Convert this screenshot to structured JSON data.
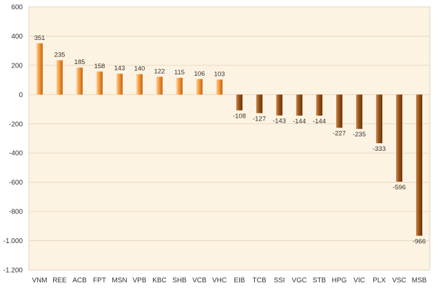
{
  "chart_data": {
    "type": "bar",
    "title": "",
    "xlabel": "",
    "ylabel": "",
    "categories": [
      "VNM",
      "REE",
      "ACB",
      "FPT",
      "MSN",
      "VPB",
      "KBC",
      "SHB",
      "VCB",
      "VHC",
      "EIB",
      "TCB",
      "SSI",
      "VGC",
      "STB",
      "HPG",
      "VIC",
      "PLX",
      "VSC",
      "MSB"
    ],
    "values": [
      351,
      235,
      185,
      158,
      143,
      140,
      122,
      115,
      106,
      103,
      -108,
      -127,
      -143,
      -144,
      -144,
      -227,
      -235,
      -333,
      -596,
      -966
    ],
    "data_labels": [
      "351",
      "235",
      "185",
      "158",
      "143",
      "140",
      "122",
      "115",
      "106",
      "103",
      "-108",
      "-127",
      "-143",
      "-144",
      "-144",
      "-227",
      "-235",
      "-333",
      "-596",
      "-966"
    ],
    "ylim": [
      -1200,
      600
    ],
    "yticks": [
      600,
      400,
      200,
      0,
      -200,
      -400,
      -600,
      -800,
      -1000,
      -1200
    ],
    "ytick_labels": [
      "600",
      "400",
      "200",
      "0",
      "-200",
      "-400",
      "-600",
      "-800",
      "-1.000",
      "-1.200"
    ],
    "grid": true,
    "legend": "none",
    "colors": {
      "positive_light": "#ffd09a",
      "positive": "#f39a3c",
      "positive_dark": "#c5650f",
      "negative_light": "#c98a52",
      "negative": "#9a5317",
      "negative_dark": "#6b360b",
      "plot_background": "#fdf3e2",
      "gridline": "#e3d2ba"
    }
  }
}
